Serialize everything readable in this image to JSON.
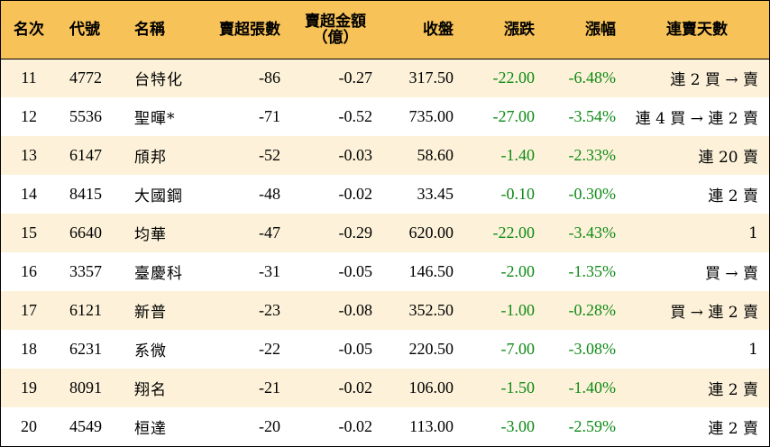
{
  "headers": {
    "rank": "名次",
    "code": "代號",
    "name": "名稱",
    "sell_shares": "賣超張數",
    "sell_amount_line1": "賣超金額",
    "sell_amount_line2": "（億）",
    "close": "收盤",
    "change": "漲跌",
    "change_pct": "漲幅",
    "consecutive": "連賣天數"
  },
  "colors": {
    "header_bg": "#f7c257",
    "odd_row_bg": "#fdf2d9",
    "negative_text": "#0e8a16"
  },
  "rows": [
    {
      "rank": "11",
      "code": "4772",
      "name": "台特化",
      "sell_shares": "-86",
      "sell_amount": "-0.27",
      "close": "317.50",
      "change": "-22.00",
      "change_pct": "-6.48%",
      "consecutive": "連 2 買 → 賣"
    },
    {
      "rank": "12",
      "code": "5536",
      "name": "聖暉*",
      "sell_shares": "-71",
      "sell_amount": "-0.52",
      "close": "735.00",
      "change": "-27.00",
      "change_pct": "-3.54%",
      "consecutive": "連 4 買 → 連 2 賣"
    },
    {
      "rank": "13",
      "code": "6147",
      "name": "頎邦",
      "sell_shares": "-52",
      "sell_amount": "-0.03",
      "close": "58.60",
      "change": "-1.40",
      "change_pct": "-2.33%",
      "consecutive": "連 20 賣"
    },
    {
      "rank": "14",
      "code": "8415",
      "name": "大國鋼",
      "sell_shares": "-48",
      "sell_amount": "-0.02",
      "close": "33.45",
      "change": "-0.10",
      "change_pct": "-0.30%",
      "consecutive": "連 2 賣"
    },
    {
      "rank": "15",
      "code": "6640",
      "name": "均華",
      "sell_shares": "-47",
      "sell_amount": "-0.29",
      "close": "620.00",
      "change": "-22.00",
      "change_pct": "-3.43%",
      "consecutive": "1"
    },
    {
      "rank": "16",
      "code": "3357",
      "name": "臺慶科",
      "sell_shares": "-31",
      "sell_amount": "-0.05",
      "close": "146.50",
      "change": "-2.00",
      "change_pct": "-1.35%",
      "consecutive": "買 → 賣"
    },
    {
      "rank": "17",
      "code": "6121",
      "name": "新普",
      "sell_shares": "-23",
      "sell_amount": "-0.08",
      "close": "352.50",
      "change": "-1.00",
      "change_pct": "-0.28%",
      "consecutive": "買 → 連 2 賣"
    },
    {
      "rank": "18",
      "code": "6231",
      "name": "系微",
      "sell_shares": "-22",
      "sell_amount": "-0.05",
      "close": "220.50",
      "change": "-7.00",
      "change_pct": "-3.08%",
      "consecutive": "1"
    },
    {
      "rank": "19",
      "code": "8091",
      "name": "翔名",
      "sell_shares": "-21",
      "sell_amount": "-0.02",
      "close": "106.00",
      "change": "-1.50",
      "change_pct": "-1.40%",
      "consecutive": "連 2 賣"
    },
    {
      "rank": "20",
      "code": "4549",
      "name": "桓達",
      "sell_shares": "-20",
      "sell_amount": "-0.02",
      "close": "113.00",
      "change": "-3.00",
      "change_pct": "-2.59%",
      "consecutive": "連 2 賣"
    }
  ]
}
